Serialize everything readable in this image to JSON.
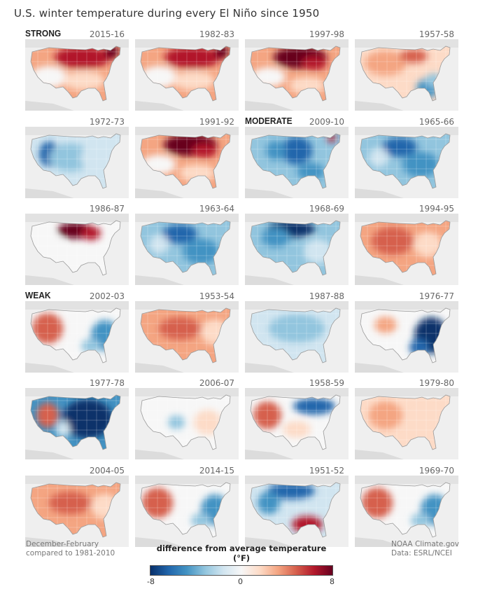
{
  "title": "U.S. winter temperature during every El Niño since 1950",
  "panels": [
    {
      "year": "2015-16",
      "category": "STRONG",
      "pattern": "warm-north"
    },
    {
      "year": "1982-83",
      "category": "",
      "pattern": "warm-north"
    },
    {
      "year": "1997-98",
      "category": "",
      "pattern": "warm-north-strong"
    },
    {
      "year": "1957-58",
      "category": "",
      "pattern": "warm-west-cool-se"
    },
    {
      "year": "1972-73",
      "category": "",
      "pattern": "cool-west"
    },
    {
      "year": "1991-92",
      "category": "",
      "pattern": "warm-north-strong"
    },
    {
      "year": "2009-10",
      "category": "MODERATE",
      "pattern": "cool-central"
    },
    {
      "year": "1965-66",
      "category": "",
      "pattern": "cool-all"
    },
    {
      "year": "1986-87",
      "category": "",
      "pattern": "warm-nplains"
    },
    {
      "year": "1963-64",
      "category": "",
      "pattern": "cool-all"
    },
    {
      "year": "1968-69",
      "category": "",
      "pattern": "cool-north"
    },
    {
      "year": "1994-95",
      "category": "",
      "pattern": "warm-all"
    },
    {
      "year": "2002-03",
      "category": "WEAK",
      "pattern": "warm-west-cool-east"
    },
    {
      "year": "1953-54",
      "category": "",
      "pattern": "warm-all-light"
    },
    {
      "year": "1987-88",
      "category": "",
      "pattern": "cool-light"
    },
    {
      "year": "1976-77",
      "category": "",
      "pattern": "cool-east-strong"
    },
    {
      "year": "1977-78",
      "category": "",
      "pattern": "cool-east-deep"
    },
    {
      "year": "2006-07",
      "category": "",
      "pattern": "neutral-light"
    },
    {
      "year": "1958-59",
      "category": "",
      "pattern": "warm-west-cool-ne"
    },
    {
      "year": "1979-80",
      "category": "",
      "pattern": "warm-light"
    },
    {
      "year": "2004-05",
      "category": "",
      "pattern": "warm-all-light"
    },
    {
      "year": "2014-15",
      "category": "",
      "pattern": "warm-west-cool-east"
    },
    {
      "year": "1951-52",
      "category": "",
      "pattern": "cool-north-warm-south"
    },
    {
      "year": "1969-70",
      "category": "",
      "pattern": "warm-west-cool-east"
    }
  ],
  "footer": {
    "left_line1": "December-February",
    "left_line2": "compared to 1981-2010",
    "right_line1": "NOAA Climate.gov",
    "right_line2": "Data: ESRL/NCEI"
  },
  "legend": {
    "title": "difference from average temperature (°F)",
    "min_label": "-8",
    "mid_label": "0",
    "max_label": "8",
    "min": -8,
    "max": 8,
    "colors": [
      "#08306b",
      "#2166ac",
      "#4393c3",
      "#92c5de",
      "#d1e5f0",
      "#f7f7f7",
      "#fddbc7",
      "#f4a582",
      "#d6604d",
      "#b2182b",
      "#67001f"
    ]
  }
}
